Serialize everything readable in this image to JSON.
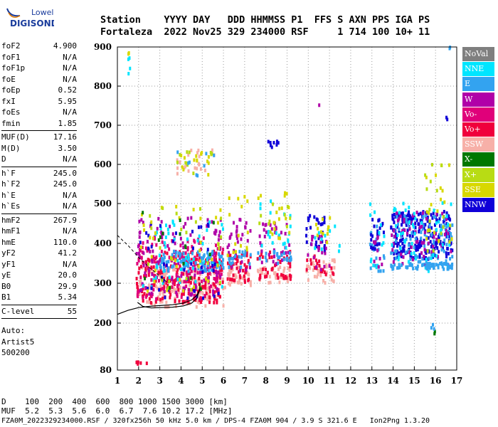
{
  "logo": {
    "line1": "Lowell",
    "line2": "DIGISONDE"
  },
  "header": {
    "row1": "Station    YYYY DAY   DDD HHMMSS P1  FFS S AXN PPS IGA PS",
    "row2": "Fortaleza  2022 Nov25 329 234000 RSF     1 714 100 10+ 11"
  },
  "params": [
    [
      {
        "name": "foF2",
        "value": "4.900"
      },
      {
        "name": "foF1",
        "value": "N/A"
      },
      {
        "name": "foF1p",
        "value": "N/A"
      },
      {
        "name": "foE",
        "value": "N/A"
      },
      {
        "name": "foEp",
        "value": "0.52"
      },
      {
        "name": "fxI",
        "value": "5.95"
      },
      {
        "name": "foEs",
        "value": "N/A"
      },
      {
        "name": "fmin",
        "value": "1.85"
      }
    ],
    [
      {
        "name": "MUF(D)",
        "value": "17.16"
      },
      {
        "name": "M(D)",
        "value": "3.50"
      },
      {
        "name": "D",
        "value": "N/A"
      }
    ],
    [
      {
        "name": "h`F",
        "value": "245.0"
      },
      {
        "name": "h`F2",
        "value": "245.0"
      },
      {
        "name": "h`E",
        "value": "N/A"
      },
      {
        "name": "h`Es",
        "value": "N/A"
      }
    ],
    [
      {
        "name": "hmF2",
        "value": "267.9"
      },
      {
        "name": "hmF1",
        "value": "N/A"
      },
      {
        "name": "hmE",
        "value": "110.0"
      },
      {
        "name": "yF2",
        "value": "41.2"
      },
      {
        "name": "yF1",
        "value": "N/A"
      },
      {
        "name": "yE",
        "value": "20.0"
      },
      {
        "name": "B0",
        "value": "29.9"
      },
      {
        "name": "B1",
        "value": "5.34"
      }
    ],
    [
      {
        "name": "C-level",
        "value": "55"
      }
    ]
  ],
  "auto": {
    "line1": "Auto:",
    "line2": "Artist5",
    "line3": "500200"
  },
  "legend": [
    {
      "label": "NoVal",
      "color": "#7f7f7f"
    },
    {
      "label": "NNE",
      "color": "#00e5ff"
    },
    {
      "label": "E",
      "color": "#33a3f0"
    },
    {
      "label": "W",
      "color": "#b000a8"
    },
    {
      "label": "Vo-",
      "color": "#e0007a"
    },
    {
      "label": "Vo+",
      "color": "#f0003c"
    },
    {
      "label": "SSW",
      "color": "#f7b0a8"
    },
    {
      "label": "X-",
      "color": "#007800"
    },
    {
      "label": "X+",
      "color": "#b8dc14"
    },
    {
      "label": "SSE",
      "color": "#d8d800"
    },
    {
      "label": "NNW",
      "color": "#1000d8"
    }
  ],
  "bottom": {
    "line1": "D    100  200  400  600  800 1000 1500 3000 [km]",
    "line2": "MUF  5.2  5.3  5.6  6.0  6.7  7.6 10.2 17.2 [MHz]",
    "line3": "FZA0M_2022329234000.RSF / 320fx256h 50 kHz 5.0 km / DPS-4 FZA0M 904 / 3.9 S 321.6 E   Ion2Png 1.3.20"
  },
  "chart_data": {
    "type": "scatter",
    "xlim": [
      1,
      17
    ],
    "ylim": [
      80,
      900
    ],
    "x_ticks": [
      "1",
      "2",
      "3",
      "4",
      "5",
      "6",
      "7",
      "8",
      "9",
      "10",
      "11",
      "12",
      "13",
      "14",
      "15",
      "16",
      "17"
    ],
    "y_ticks": [
      "80",
      "200",
      "300",
      "400",
      "500",
      "600",
      "700",
      "800",
      "900"
    ],
    "grid": true,
    "clusters": [
      {
        "series": "SSW",
        "x": [
          2.0,
          6.1
        ],
        "y": [
          240,
          340
        ],
        "n": 160
      },
      {
        "series": "Vo+",
        "x": [
          1.9,
          6.0
        ],
        "y": [
          250,
          380
        ],
        "n": 220
      },
      {
        "series": "Vo-",
        "x": [
          1.9,
          6.0
        ],
        "y": [
          260,
          420
        ],
        "n": 140
      },
      {
        "series": "W",
        "x": [
          1.9,
          6.0
        ],
        "y": [
          270,
          470
        ],
        "n": 110
      },
      {
        "series": "E",
        "x": [
          2.8,
          6.0
        ],
        "y": [
          330,
          380
        ],
        "n": 90
      },
      {
        "series": "NNE",
        "x": [
          2.2,
          6.0
        ],
        "y": [
          290,
          470
        ],
        "n": 50
      },
      {
        "series": "NNW",
        "x": [
          1.9,
          6.0
        ],
        "y": [
          260,
          450
        ],
        "n": 40
      },
      {
        "series": "SSE",
        "x": [
          2.0,
          6.0
        ],
        "y": [
          280,
          500
        ],
        "n": 35
      },
      {
        "series": "X+",
        "x": [
          2.0,
          6.0
        ],
        "y": [
          280,
          500
        ],
        "n": 25
      },
      {
        "series": "X-",
        "x": [
          2.0,
          6.0
        ],
        "y": [
          280,
          480
        ],
        "n": 15
      },
      {
        "series": "SSW",
        "x": [
          3.8,
          5.6
        ],
        "y": [
          570,
          640
        ],
        "n": 22
      },
      {
        "series": "SSE",
        "x": [
          3.8,
          5.6
        ],
        "y": [
          570,
          640
        ],
        "n": 16
      },
      {
        "series": "X+",
        "x": [
          3.8,
          5.6
        ],
        "y": [
          570,
          640
        ],
        "n": 10
      },
      {
        "series": "E",
        "x": [
          3.8,
          5.6
        ],
        "y": [
          570,
          640
        ],
        "n": 8
      },
      {
        "series": "SSW",
        "x": [
          6.2,
          7.3
        ],
        "y": [
          290,
          340
        ],
        "n": 35
      },
      {
        "series": "Vo+",
        "x": [
          6.2,
          7.3
        ],
        "y": [
          300,
          380
        ],
        "n": 45
      },
      {
        "series": "W",
        "x": [
          6.2,
          7.3
        ],
        "y": [
          330,
          460
        ],
        "n": 30
      },
      {
        "series": "E",
        "x": [
          6.2,
          7.3
        ],
        "y": [
          340,
          380
        ],
        "n": 20
      },
      {
        "series": "SSE",
        "x": [
          6.2,
          7.3
        ],
        "y": [
          360,
          520
        ],
        "n": 15
      },
      {
        "series": "SSW",
        "x": [
          7.6,
          9.2
        ],
        "y": [
          300,
          340
        ],
        "n": 40
      },
      {
        "series": "Vo+",
        "x": [
          7.6,
          9.2
        ],
        "y": [
          310,
          380
        ],
        "n": 45
      },
      {
        "series": "W",
        "x": [
          7.6,
          9.2
        ],
        "y": [
          340,
          450
        ],
        "n": 35
      },
      {
        "series": "E",
        "x": [
          7.6,
          9.2
        ],
        "y": [
          350,
          380
        ],
        "n": 25
      },
      {
        "series": "NNE",
        "x": [
          7.6,
          9.2
        ],
        "y": [
          380,
          540
        ],
        "n": 20
      },
      {
        "series": "SSE",
        "x": [
          7.6,
          9.2
        ],
        "y": [
          400,
          540
        ],
        "n": 18
      },
      {
        "series": "X+",
        "x": [
          7.6,
          9.2
        ],
        "y": [
          420,
          500
        ],
        "n": 10
      },
      {
        "series": "NNW",
        "x": [
          8.1,
          8.6
        ],
        "y": [
          640,
          660
        ],
        "n": 8
      },
      {
        "series": "SSW",
        "x": [
          9.9,
          11.3
        ],
        "y": [
          300,
          360
        ],
        "n": 40
      },
      {
        "series": "Vo+",
        "x": [
          9.9,
          11.2
        ],
        "y": [
          320,
          370
        ],
        "n": 20
      },
      {
        "series": "NNW",
        "x": [
          9.9,
          10.8
        ],
        "y": [
          380,
          470
        ],
        "n": 30
      },
      {
        "series": "W",
        "x": [
          9.9,
          11.0
        ],
        "y": [
          330,
          420
        ],
        "n": 20
      },
      {
        "series": "SSE",
        "x": [
          10.2,
          11.4
        ],
        "y": [
          380,
          470
        ],
        "n": 12
      },
      {
        "series": "NNE",
        "x": [
          10.3,
          11.5
        ],
        "y": [
          380,
          460
        ],
        "n": 10
      },
      {
        "series": "E",
        "x": [
          12.9,
          13.6
        ],
        "y": [
          330,
          460
        ],
        "n": 20
      },
      {
        "series": "NNW",
        "x": [
          12.9,
          13.6
        ],
        "y": [
          340,
          460
        ],
        "n": 20
      },
      {
        "series": "NNE",
        "x": [
          12.8,
          13.6
        ],
        "y": [
          330,
          520
        ],
        "n": 14
      },
      {
        "series": "W",
        "x": [
          12.9,
          13.6
        ],
        "y": [
          340,
          420
        ],
        "n": 10
      },
      {
        "series": "NNW",
        "x": [
          13.9,
          16.8
        ],
        "y": [
          360,
          480
        ],
        "n": 220
      },
      {
        "series": "E",
        "x": [
          13.9,
          16.8
        ],
        "y": [
          340,
          470
        ],
        "n": 100
      },
      {
        "series": "W",
        "x": [
          13.9,
          16.8
        ],
        "y": [
          340,
          480
        ],
        "n": 60
      },
      {
        "series": "NNE",
        "x": [
          13.9,
          16.8
        ],
        "y": [
          330,
          510
        ],
        "n": 50
      },
      {
        "series": "SSE",
        "x": [
          15.5,
          16.8
        ],
        "y": [
          380,
          620
        ],
        "n": 20
      },
      {
        "series": "X+",
        "x": [
          15.5,
          16.8
        ],
        "y": [
          380,
          600
        ],
        "n": 15
      },
      {
        "series": "E",
        "x": [
          13.9,
          16.8
        ],
        "y": [
          335,
          350
        ],
        "n": 60
      },
      {
        "series": "Vo+",
        "x": [
          1.9,
          2.4
        ],
        "y": [
          95,
          102
        ],
        "n": 6
      },
      {
        "series": "NNE",
        "x": [
          1.5,
          1.6
        ],
        "y": [
          830,
          880
        ],
        "n": 4
      },
      {
        "series": "SSE",
        "x": [
          1.5,
          1.6
        ],
        "y": [
          880,
          890
        ],
        "n": 2
      },
      {
        "series": "NNW",
        "x": [
          16.5,
          16.7
        ],
        "y": [
          710,
          720
        ],
        "n": 2
      },
      {
        "series": "W",
        "x": [
          10.5,
          10.6
        ],
        "y": [
          748,
          752
        ],
        "n": 1
      },
      {
        "series": "E",
        "x": [
          16.6,
          16.7
        ],
        "y": [
          890,
          900
        ],
        "n": 2
      },
      {
        "series": "X-",
        "x": [
          15.8,
          16.0
        ],
        "y": [
          160,
          180
        ],
        "n": 2
      },
      {
        "series": "E",
        "x": [
          15.8,
          16.0
        ],
        "y": [
          185,
          200
        ],
        "n": 3
      }
    ]
  }
}
